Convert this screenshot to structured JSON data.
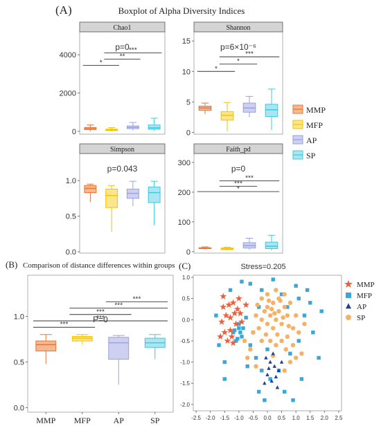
{
  "figure": {
    "label_a": "(A)",
    "title_a": "Boxplot of Alpha Diversity Indices",
    "label_b": "(B)",
    "title_b": "Comparison of distance differences within groups",
    "label_c": "(C)"
  },
  "legend_a": {
    "items": [
      {
        "name": "MMP",
        "fill": "#f6b98f",
        "stroke": "#e7733a"
      },
      {
        "name": "MFP",
        "fill": "#fbe68c",
        "stroke": "#f2c200"
      },
      {
        "name": "AP",
        "fill": "#cdd0f0",
        "stroke": "#9aa0dc"
      },
      {
        "name": "SP",
        "fill": "#a9e6f1",
        "stroke": "#3fc6e0"
      }
    ]
  },
  "chart_data": [
    {
      "type": "box",
      "panel": "Chao1",
      "title": "Chao1",
      "stat_text": "p=0",
      "categories": [
        "MMP",
        "MFP",
        "AP",
        "SP"
      ],
      "ylim": [
        -150,
        5200
      ],
      "yticks": [
        0,
        2000,
        4000
      ],
      "boxes": [
        {
          "min": 5,
          "q1": 90,
          "median": 140,
          "q3": 200,
          "max": 330
        },
        {
          "min": 5,
          "q1": 40,
          "median": 75,
          "q3": 110,
          "max": 190
        },
        {
          "min": 40,
          "q1": 140,
          "median": 200,
          "q3": 280,
          "max": 460
        },
        {
          "min": 20,
          "q1": 110,
          "median": 180,
          "q3": 330,
          "max": 680
        }
      ],
      "significance": [
        {
          "from": 0,
          "to": 1,
          "y": 3450,
          "label": "*"
        },
        {
          "from": 1,
          "to": 2,
          "y": 3770,
          "label": "**"
        },
        {
          "from": 1,
          "to": 3,
          "y": 4100,
          "label": "***"
        }
      ]
    },
    {
      "type": "box",
      "panel": "Shannon",
      "title": "Shannon",
      "stat_text": "p=6×10⁻⁶",
      "categories": [
        "MMP",
        "MFP",
        "AP",
        "SP"
      ],
      "ylim": [
        -0.3,
        16.5
      ],
      "yticks": [
        0,
        5,
        10,
        15
      ],
      "boxes": [
        {
          "min": 3.0,
          "q1": 3.6,
          "median": 4.0,
          "q3": 4.3,
          "max": 4.8
        },
        {
          "min": 0.2,
          "q1": 2.0,
          "median": 2.8,
          "q3": 3.4,
          "max": 4.9
        },
        {
          "min": 2.5,
          "q1": 3.3,
          "median": 4.0,
          "q3": 4.8,
          "max": 5.9
        },
        {
          "min": 0.4,
          "q1": 2.6,
          "median": 3.7,
          "q3": 4.6,
          "max": 7.1
        }
      ],
      "significance": [
        {
          "from": 0,
          "to": 1,
          "y": 10.0,
          "label": "*"
        },
        {
          "from": 1,
          "to": 2,
          "y": 11.2,
          "label": "*"
        },
        {
          "from": 1,
          "to": 3,
          "y": 12.4,
          "label": "***"
        }
      ]
    },
    {
      "type": "box",
      "panel": "Simpson",
      "title": "Simpson",
      "stat_text": "p=0.043",
      "categories": [
        "MMP",
        "MFP",
        "AP",
        "SP"
      ],
      "ylim": [
        -0.02,
        1.38
      ],
      "yticks": [
        0.0,
        0.5,
        1.0
      ],
      "boxes": [
        {
          "min": 0.7,
          "q1": 0.83,
          "median": 0.89,
          "q3": 0.93,
          "max": 0.95
        },
        {
          "min": 0.28,
          "q1": 0.62,
          "median": 0.79,
          "q3": 0.88,
          "max": 0.93
        },
        {
          "min": 0.64,
          "q1": 0.75,
          "median": 0.82,
          "q3": 0.88,
          "max": 0.99
        },
        {
          "min": 0.37,
          "q1": 0.69,
          "median": 0.83,
          "q3": 0.91,
          "max": 0.99
        }
      ],
      "significance": []
    },
    {
      "type": "box",
      "panel": "Faith_pd",
      "title": "Faith_pd",
      "stat_text": "p=0",
      "categories": [
        "MMP",
        "MFP",
        "AP",
        "SP"
      ],
      "ylim": [
        -5,
        330
      ],
      "yticks": [
        0,
        100,
        200,
        300
      ],
      "boxes": [
        {
          "min": 7,
          "q1": 10,
          "median": 12,
          "q3": 13,
          "max": 16
        },
        {
          "min": 4,
          "q1": 7,
          "median": 9,
          "q3": 12,
          "max": 15
        },
        {
          "min": 6,
          "q1": 12,
          "median": 20,
          "q3": 30,
          "max": 45
        },
        {
          "min": 4,
          "q1": 10,
          "median": 18,
          "q3": 32,
          "max": 55
        }
      ],
      "significance": [
        {
          "from": 0,
          "to": 3,
          "y": 202,
          "label": "*"
        },
        {
          "from": 1,
          "to": 2,
          "y": 220,
          "label": "***"
        },
        {
          "from": 1,
          "to": 3,
          "y": 238,
          "label": "***"
        }
      ]
    },
    {
      "type": "box",
      "panel": "B",
      "title": "Comparison of distance differences within groups",
      "stat_text": "P=0",
      "categories": [
        "MMP",
        "MFP",
        "AP",
        "SP"
      ],
      "ylim": [
        -0.05,
        1.45
      ],
      "yticks": [
        0.0,
        0.5,
        1.0
      ],
      "boxes": [
        {
          "min": 0.48,
          "q1": 0.62,
          "median": 0.69,
          "q3": 0.73,
          "max": 0.8
        },
        {
          "min": 0.69,
          "q1": 0.73,
          "median": 0.76,
          "q3": 0.78,
          "max": 0.8
        },
        {
          "min": 0.25,
          "q1": 0.53,
          "median": 0.71,
          "q3": 0.77,
          "max": 0.79
        },
        {
          "min": 0.53,
          "q1": 0.66,
          "median": 0.71,
          "q3": 0.76,
          "max": 0.8
        }
      ],
      "significance": [
        {
          "from": 0,
          "to": 1,
          "y": 0.88,
          "label": "***"
        },
        {
          "from": 0,
          "to": 3,
          "y": 0.95,
          "label": "***"
        },
        {
          "from": 1,
          "to": 2,
          "y": 1.02,
          "label": "***"
        },
        {
          "from": 1,
          "to": 3,
          "y": 1.09,
          "label": "***"
        },
        {
          "from": 2,
          "to": 3,
          "y": 1.16,
          "label": "***"
        }
      ]
    },
    {
      "type": "scatter",
      "panel": "C",
      "title": "Stress=0.205",
      "xlim": [
        -2.6,
        2.6
      ],
      "ylim": [
        -2.15,
        1.05
      ],
      "xticks": [
        -2.5,
        -2.0,
        -1.5,
        -1.0,
        -0.5,
        0.0,
        0.5,
        1.0,
        1.5,
        2.0,
        2.5
      ],
      "yticks": [
        -2.0,
        -1.5,
        -1.0,
        -0.5,
        0.0,
        0.5,
        1.0
      ],
      "series": [
        {
          "name": "MMP",
          "marker": "star",
          "color": "#e8603c",
          "points": [
            [
              -1.55,
              0.3
            ],
            [
              -1.35,
              0.35
            ],
            [
              -1.2,
              0.4
            ],
            [
              -1.05,
              0.25
            ],
            [
              -0.75,
              0.35
            ],
            [
              -1.45,
              0.1
            ],
            [
              -1.3,
              0.05
            ],
            [
              -1.6,
              -0.05
            ],
            [
              -1.5,
              -0.3
            ],
            [
              -1.3,
              -0.25
            ],
            [
              -1.1,
              -0.1
            ],
            [
              -0.9,
              -0.05
            ],
            [
              -1.4,
              -0.5
            ],
            [
              -1.2,
              -0.55
            ],
            [
              -1.55,
              0.55
            ],
            [
              -1.0,
              0.5
            ],
            [
              -1.25,
              -0.4
            ],
            [
              -0.95,
              0.15
            ],
            [
              -1.65,
              -0.4
            ],
            [
              -1.15,
              0.15
            ]
          ]
        },
        {
          "name": "MFP",
          "marker": "square",
          "color": "#3aa7d8",
          "points": [
            [
              -0.6,
              0.85
            ],
            [
              0.2,
              0.95
            ],
            [
              -0.2,
              0.7
            ],
            [
              1.0,
              0.8
            ],
            [
              1.5,
              0.4
            ],
            [
              -1.8,
              0.1
            ],
            [
              -1.7,
              -0.6
            ],
            [
              -1.5,
              -1.0
            ],
            [
              -0.3,
              -1.7
            ],
            [
              0.6,
              -1.7
            ],
            [
              1.2,
              -1.4
            ],
            [
              1.8,
              -0.9
            ],
            [
              1.9,
              0.2
            ],
            [
              -0.9,
              0.9
            ],
            [
              0.5,
              0.6
            ],
            [
              -1.2,
              -0.3
            ],
            [
              -1.0,
              -0.2
            ],
            [
              -0.9,
              -0.4
            ],
            [
              -1.1,
              -0.5
            ],
            [
              -1.0,
              -0.1
            ],
            [
              -1.15,
              -0.25
            ],
            [
              -0.95,
              -0.3
            ],
            [
              -1.05,
              -0.45
            ],
            [
              -0.85,
              -0.2
            ],
            [
              -0.75,
              0.05
            ],
            [
              -0.6,
              -0.6
            ],
            [
              -0.4,
              -0.9
            ],
            [
              -0.2,
              -1.2
            ],
            [
              0.1,
              -1.4
            ],
            [
              0.4,
              -1.2
            ],
            [
              0.8,
              -0.8
            ],
            [
              1.1,
              -0.5
            ],
            [
              1.3,
              0.1
            ],
            [
              1.1,
              0.5
            ],
            [
              0.7,
              0.3
            ],
            [
              -0.3,
              0.3
            ],
            [
              -0.5,
              -0.3
            ],
            [
              0.0,
              -0.7
            ],
            [
              -1.3,
              0.7
            ],
            [
              1.6,
              -0.3
            ],
            [
              -1.5,
              -1.4
            ],
            [
              0.9,
              -1.9
            ],
            [
              -0.1,
              -1.9
            ],
            [
              1.4,
              0.7
            ],
            [
              -0.7,
              -1.1
            ]
          ]
        },
        {
          "name": "AP",
          "marker": "triangle",
          "color": "#1f3f8f",
          "points": [
            [
              -0.05,
              -0.9
            ],
            [
              0.1,
              -1.0
            ],
            [
              0.25,
              -1.1
            ],
            [
              0.4,
              -1.2
            ],
            [
              0.0,
              -1.3
            ],
            [
              0.15,
              -1.45
            ],
            [
              0.35,
              -1.6
            ],
            [
              -0.1,
              -1.5
            ],
            [
              0.2,
              -0.8
            ],
            [
              0.5,
              -1.0
            ],
            [
              0.3,
              -1.35
            ],
            [
              0.05,
              -1.15
            ]
          ]
        },
        {
          "name": "SP",
          "marker": "circle",
          "color": "#f5b266",
          "points": [
            [
              0.0,
              0.3
            ],
            [
              0.1,
              0.1
            ],
            [
              0.2,
              0.4
            ],
            [
              0.3,
              0.0
            ],
            [
              0.4,
              0.2
            ],
            [
              0.5,
              -0.1
            ],
            [
              0.6,
              0.3
            ],
            [
              0.7,
              0.1
            ],
            [
              0.2,
              -0.2
            ],
            [
              0.0,
              -0.1
            ],
            [
              -0.1,
              0.2
            ],
            [
              -0.2,
              0.0
            ],
            [
              -0.3,
              -0.2
            ],
            [
              -0.4,
              0.1
            ],
            [
              -0.5,
              -0.3
            ],
            [
              -0.2,
              -0.5
            ],
            [
              0.1,
              -0.5
            ],
            [
              0.3,
              -0.6
            ],
            [
              0.5,
              -0.5
            ],
            [
              0.7,
              -0.4
            ],
            [
              0.9,
              -0.2
            ],
            [
              1.0,
              0.1
            ],
            [
              0.8,
              0.4
            ],
            [
              0.6,
              0.6
            ],
            [
              0.3,
              0.7
            ],
            [
              0.0,
              0.6
            ],
            [
              -0.2,
              0.5
            ],
            [
              0.4,
              0.5
            ],
            [
              0.9,
              -0.6
            ],
            [
              1.1,
              -0.3
            ],
            [
              1.2,
              -0.8
            ],
            [
              0.8,
              -1.0
            ],
            [
              0.6,
              -1.2
            ],
            [
              -0.6,
              -0.7
            ],
            [
              -0.8,
              -0.5
            ],
            [
              -0.7,
              -0.9
            ],
            [
              -0.4,
              -1.1
            ],
            [
              1.3,
              -0.1
            ],
            [
              0.15,
              0.25
            ],
            [
              0.35,
              -0.35
            ],
            [
              0.55,
              0.05
            ],
            [
              -0.05,
              -0.35
            ],
            [
              0.25,
              0.15
            ],
            [
              0.45,
              0.45
            ],
            [
              0.75,
              -0.15
            ],
            [
              0.05,
              0.45
            ],
            [
              -0.35,
              0.35
            ],
            [
              0.65,
              -0.7
            ],
            [
              1.0,
              -0.9
            ],
            [
              0.2,
              -0.85
            ]
          ]
        }
      ]
    }
  ]
}
